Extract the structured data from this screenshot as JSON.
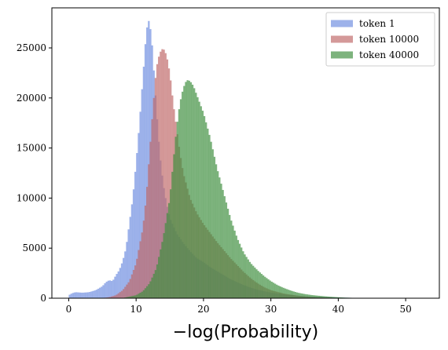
{
  "chart_data": {
    "type": "histogram",
    "xlabel": "−log(Probability)",
    "xlim": [
      -2.5,
      55
    ],
    "ylim": [
      0,
      29000
    ],
    "xticks": [
      0,
      10,
      20,
      30,
      40,
      50
    ],
    "yticks": [
      0,
      5000,
      10000,
      15000,
      20000,
      25000
    ],
    "legend_position": "top-right",
    "bin_width": 0.25,
    "series": [
      {
        "name": "token 1",
        "color": "#6f8ee0",
        "opacity": 0.68,
        "points": [
          [
            0,
            300
          ],
          [
            0.5,
            500
          ],
          [
            1,
            600
          ],
          [
            2,
            550
          ],
          [
            3,
            600
          ],
          [
            4,
            800
          ],
          [
            5,
            1200
          ],
          [
            5.5,
            1600
          ],
          [
            6,
            1800
          ],
          [
            6.5,
            1700
          ],
          [
            7,
            2300
          ],
          [
            7.5,
            2800
          ],
          [
            8,
            3700
          ],
          [
            8.5,
            5000
          ],
          [
            9,
            7500
          ],
          [
            9.5,
            10000
          ],
          [
            10,
            13500
          ],
          [
            10.5,
            17500
          ],
          [
            11,
            22000
          ],
          [
            11.5,
            26500
          ],
          [
            11.8,
            27800
          ],
          [
            12,
            27500
          ],
          [
            12.3,
            26000
          ],
          [
            12.6,
            23000
          ],
          [
            13,
            19000
          ],
          [
            13.5,
            14500
          ],
          [
            14,
            11500
          ],
          [
            14.5,
            9500
          ],
          [
            15,
            8000
          ],
          [
            16,
            6500
          ],
          [
            17,
            5500
          ],
          [
            18,
            4700
          ],
          [
            19,
            4000
          ],
          [
            20,
            3600
          ],
          [
            21,
            3100
          ],
          [
            22,
            2700
          ],
          [
            23,
            2300
          ],
          [
            24,
            1900
          ],
          [
            25,
            1600
          ],
          [
            26,
            1300
          ],
          [
            27,
            1050
          ],
          [
            28,
            850
          ],
          [
            30,
            550
          ],
          [
            32,
            380
          ],
          [
            34,
            250
          ],
          [
            36,
            160
          ],
          [
            38,
            110
          ],
          [
            40,
            70
          ],
          [
            42,
            40
          ],
          [
            44,
            20
          ],
          [
            46,
            10
          ],
          [
            48,
            5
          ],
          [
            50,
            2
          ],
          [
            52,
            0
          ]
        ]
      },
      {
        "name": "token 10000",
        "color": "#c06868",
        "opacity": 0.68,
        "points": [
          [
            5,
            20
          ],
          [
            6,
            100
          ],
          [
            7,
            300
          ],
          [
            8,
            800
          ],
          [
            9,
            1700
          ],
          [
            10,
            3500
          ],
          [
            11,
            7000
          ],
          [
            11.5,
            10000
          ],
          [
            12,
            14500
          ],
          [
            12.5,
            19000
          ],
          [
            13,
            23000
          ],
          [
            13.5,
            24500
          ],
          [
            14,
            25000
          ],
          [
            14.5,
            24300
          ],
          [
            15,
            22500
          ],
          [
            15.5,
            19500
          ],
          [
            16,
            17000
          ],
          [
            16.5,
            14500
          ],
          [
            17,
            12500
          ],
          [
            18,
            10000
          ],
          [
            19,
            8500
          ],
          [
            20,
            7400
          ],
          [
            21,
            6500
          ],
          [
            22,
            5600
          ],
          [
            23,
            4800
          ],
          [
            24,
            4000
          ],
          [
            25,
            3300
          ],
          [
            26,
            2600
          ],
          [
            27,
            2000
          ],
          [
            28,
            1500
          ],
          [
            29,
            1100
          ],
          [
            30,
            800
          ],
          [
            32,
            450
          ],
          [
            34,
            250
          ],
          [
            36,
            130
          ],
          [
            38,
            70
          ],
          [
            40,
            30
          ],
          [
            42,
            12
          ],
          [
            44,
            4
          ],
          [
            46,
            0
          ]
        ]
      },
      {
        "name": "token 40000",
        "color": "#3f8f3f",
        "opacity": 0.68,
        "points": [
          [
            8,
            20
          ],
          [
            10,
            300
          ],
          [
            11,
            700
          ],
          [
            12,
            1500
          ],
          [
            13,
            3000
          ],
          [
            14,
            6000
          ],
          [
            15,
            10000
          ],
          [
            15.5,
            13500
          ],
          [
            16,
            17000
          ],
          [
            16.5,
            19500
          ],
          [
            17,
            21000
          ],
          [
            17.5,
            21800
          ],
          [
            18,
            21700
          ],
          [
            18.5,
            21200
          ],
          [
            19,
            20300
          ],
          [
            20,
            18500
          ],
          [
            21,
            16000
          ],
          [
            22,
            13000
          ],
          [
            23,
            10500
          ],
          [
            24,
            8000
          ],
          [
            25,
            6000
          ],
          [
            26,
            4500
          ],
          [
            27,
            3500
          ],
          [
            28,
            2800
          ],
          [
            29,
            2200
          ],
          [
            30,
            1700
          ],
          [
            31,
            1300
          ],
          [
            32,
            1000
          ],
          [
            33,
            750
          ],
          [
            34,
            550
          ],
          [
            35,
            420
          ],
          [
            36,
            320
          ],
          [
            37,
            250
          ],
          [
            38,
            190
          ],
          [
            39,
            140
          ],
          [
            40,
            100
          ],
          [
            41,
            60
          ],
          [
            42,
            40
          ],
          [
            43,
            25
          ],
          [
            44,
            15
          ],
          [
            46,
            5
          ],
          [
            48,
            0
          ]
        ]
      }
    ]
  }
}
